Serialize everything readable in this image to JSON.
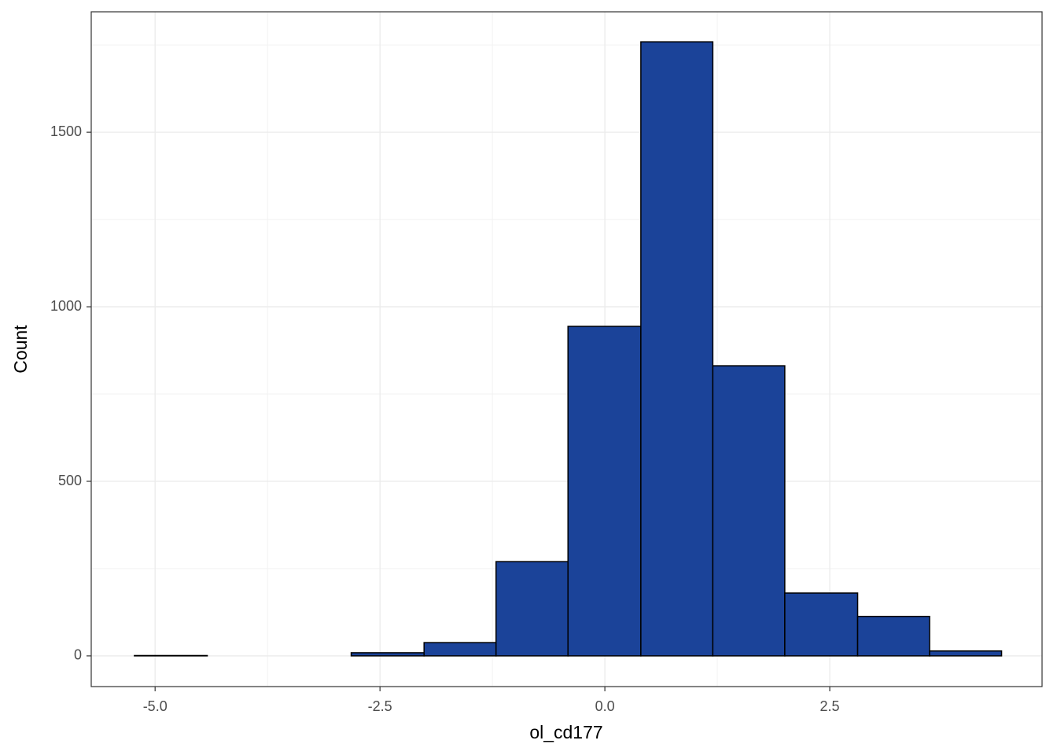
{
  "chart_data": {
    "type": "histogram",
    "x_label": "ol_cd177",
    "y_label": "Count",
    "bins": [
      -5.23,
      -4.42,
      -3.62,
      -2.82,
      -2.01,
      -1.21,
      -0.41,
      0.4,
      1.2,
      2.0,
      2.81,
      3.61,
      4.41
    ],
    "values": [
      1,
      0,
      0,
      9,
      38,
      270,
      944,
      1759,
      831,
      180,
      113,
      14
    ],
    "color": "#1b4399",
    "edge_color": "#000000",
    "xlim": [
      -5.71,
      4.86
    ],
    "ylim": [
      -88,
      1845
    ],
    "xticks": [
      {
        "value": -5,
        "label": "-5.0"
      },
      {
        "value": -2.5,
        "label": "-2.5"
      },
      {
        "value": 0,
        "label": "0.0"
      },
      {
        "value": 2.5,
        "label": "2.5"
      }
    ],
    "yticks": [
      0,
      500,
      1000,
      1500
    ],
    "grid": true
  }
}
